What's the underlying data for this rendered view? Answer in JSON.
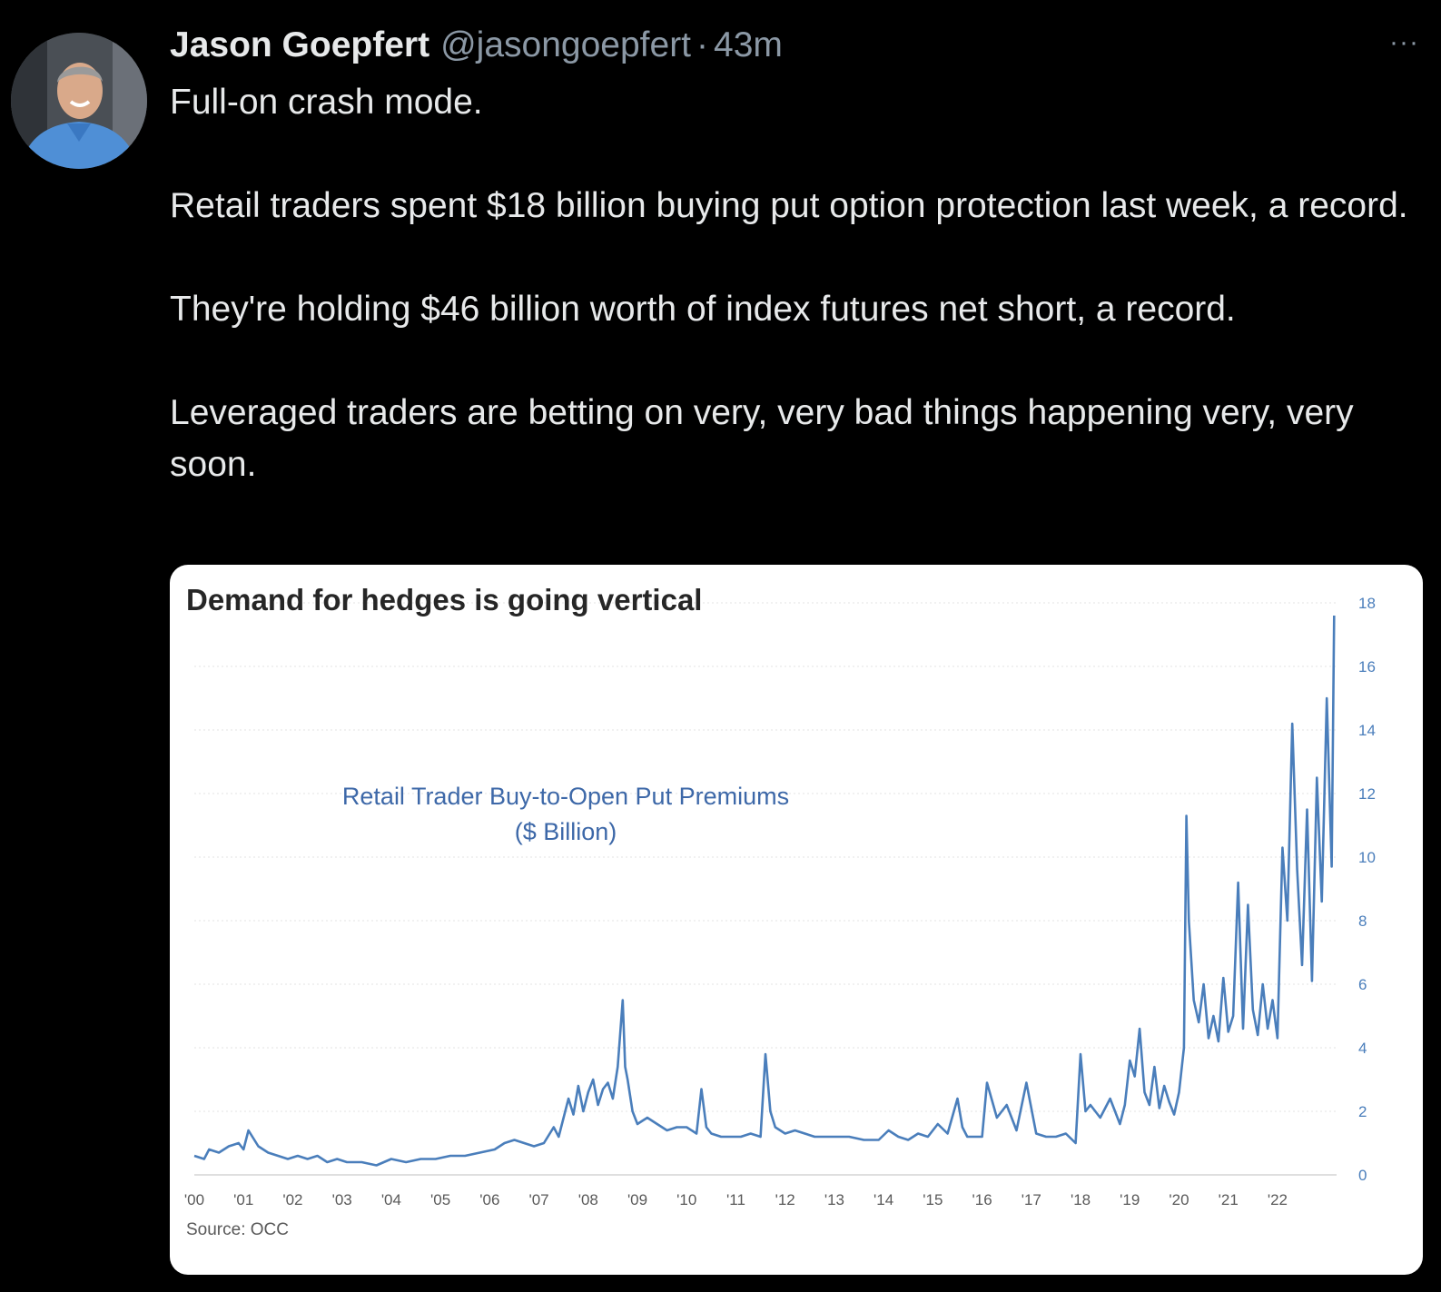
{
  "tweet": {
    "author_name": "Jason Goepfert",
    "handle": "@jasongoepfert",
    "separator": "·",
    "time": "43m",
    "more_label": "···",
    "paragraphs": [
      "Full-on crash mode.",
      "Retail traders spent $18 billion buying put option protection last week, a record.",
      "They're holding $46 billion worth of index futures net short, a record.",
      "Leveraged traders are betting on very, very bad things happening very, very soon."
    ]
  },
  "colors": {
    "background": "#000000",
    "text": "#e7e9ea",
    "muted": "#8b98a5",
    "series": "#4a7ebb"
  },
  "icons": {
    "avatar": "avatar-photo",
    "more": "more-dots-icon"
  },
  "chart_data": {
    "type": "line",
    "title": "Demand for hedges is going vertical",
    "series_label_line1": "Retail Trader Buy-to-Open Put Premiums",
    "series_label_line2": "($ Billion)",
    "source": "Source: OCC",
    "xlim": [
      2000,
      2023.2
    ],
    "ylim": [
      0,
      18
    ],
    "y_axis_side": "right",
    "grid": "horizontal-dotted",
    "x_tick_values": [
      2000,
      2001,
      2002,
      2003,
      2004,
      2005,
      2006,
      2007,
      2008,
      2009,
      2010,
      2011,
      2012,
      2013,
      2014,
      2015,
      2016,
      2017,
      2018,
      2019,
      2020,
      2021,
      2022
    ],
    "x_tick_labels": [
      "'00",
      "'01",
      "'02",
      "'03",
      "'04",
      "'05",
      "'06",
      "'07",
      "'08",
      "'09",
      "'10",
      "'11",
      "'12",
      "'13",
      "'14",
      "'15",
      "'16",
      "'17",
      "'18",
      "'19",
      "'20",
      "'21",
      "'22"
    ],
    "y_ticks": [
      0,
      2,
      4,
      6,
      8,
      10,
      12,
      14,
      16,
      18
    ],
    "series": [
      {
        "x": [
          2000.0,
          2000.2,
          2000.3,
          2000.5,
          2000.7,
          2000.9,
          2001.0,
          2001.1,
          2001.3,
          2001.5,
          2001.7,
          2001.9,
          2002.1,
          2002.3,
          2002.5,
          2002.7,
          2002.9,
          2003.1,
          2003.4,
          2003.7,
          2004.0,
          2004.3,
          2004.6,
          2004.9,
          2005.2,
          2005.5,
          2005.8,
          2006.1,
          2006.3,
          2006.5,
          2006.7,
          2006.9,
          2007.1,
          2007.3,
          2007.4,
          2007.5,
          2007.6,
          2007.7,
          2007.8,
          2007.9,
          2008.0,
          2008.1,
          2008.2,
          2008.3,
          2008.4,
          2008.5,
          2008.6,
          2008.7,
          2008.75,
          2008.8,
          2008.9,
          2009.0,
          2009.1,
          2009.2,
          2009.4,
          2009.6,
          2009.8,
          2010.0,
          2010.2,
          2010.3,
          2010.4,
          2010.5,
          2010.7,
          2010.9,
          2011.1,
          2011.3,
          2011.5,
          2011.6,
          2011.7,
          2011.8,
          2012.0,
          2012.2,
          2012.4,
          2012.6,
          2012.8,
          2013.0,
          2013.3,
          2013.6,
          2013.9,
          2014.1,
          2014.3,
          2014.5,
          2014.7,
          2014.9,
          2015.1,
          2015.3,
          2015.5,
          2015.6,
          2015.7,
          2015.9,
          2016.0,
          2016.1,
          2016.3,
          2016.5,
          2016.7,
          2016.9,
          2017.1,
          2017.3,
          2017.5,
          2017.7,
          2017.9,
          2018.0,
          2018.1,
          2018.2,
          2018.4,
          2018.6,
          2018.8,
          2018.9,
          2019.0,
          2019.1,
          2019.2,
          2019.3,
          2019.4,
          2019.5,
          2019.6,
          2019.7,
          2019.8,
          2019.9,
          2020.0,
          2020.1,
          2020.15,
          2020.2,
          2020.3,
          2020.4,
          2020.5,
          2020.6,
          2020.7,
          2020.8,
          2020.9,
          2021.0,
          2021.1,
          2021.2,
          2021.3,
          2021.4,
          2021.5,
          2021.6,
          2021.7,
          2021.8,
          2021.9,
          2022.0,
          2022.1,
          2022.2,
          2022.3,
          2022.4,
          2022.5,
          2022.6,
          2022.7,
          2022.8,
          2022.9,
          2023.0,
          2023.1,
          2023.15
        ],
        "values": [
          0.6,
          0.5,
          0.8,
          0.7,
          0.9,
          1.0,
          0.8,
          1.4,
          0.9,
          0.7,
          0.6,
          0.5,
          0.6,
          0.5,
          0.6,
          0.4,
          0.5,
          0.4,
          0.4,
          0.3,
          0.5,
          0.4,
          0.5,
          0.5,
          0.6,
          0.6,
          0.7,
          0.8,
          1.0,
          1.1,
          1.0,
          0.9,
          1.0,
          1.5,
          1.2,
          1.8,
          2.4,
          1.9,
          2.8,
          2.0,
          2.6,
          3.0,
          2.2,
          2.7,
          2.9,
          2.4,
          3.4,
          5.5,
          3.4,
          3.0,
          2.0,
          1.6,
          1.7,
          1.8,
          1.6,
          1.4,
          1.5,
          1.5,
          1.3,
          2.7,
          1.5,
          1.3,
          1.2,
          1.2,
          1.2,
          1.3,
          1.2,
          3.8,
          2.0,
          1.5,
          1.3,
          1.4,
          1.3,
          1.2,
          1.2,
          1.2,
          1.2,
          1.1,
          1.1,
          1.4,
          1.2,
          1.1,
          1.3,
          1.2,
          1.6,
          1.3,
          2.4,
          1.5,
          1.2,
          1.2,
          1.2,
          2.9,
          1.8,
          2.2,
          1.4,
          2.9,
          1.3,
          1.2,
          1.2,
          1.3,
          1.0,
          3.8,
          2.0,
          2.2,
          1.8,
          2.4,
          1.6,
          2.2,
          3.6,
          3.1,
          4.6,
          2.6,
          2.2,
          3.4,
          2.1,
          2.8,
          2.3,
          1.9,
          2.6,
          4.0,
          11.3,
          8.0,
          5.5,
          4.8,
          6.0,
          4.3,
          5.0,
          4.2,
          6.2,
          4.5,
          5.0,
          9.2,
          4.6,
          8.5,
          5.2,
          4.4,
          6.0,
          4.6,
          5.5,
          4.3,
          10.3,
          8.0,
          14.2,
          9.6,
          6.6,
          11.5,
          6.1,
          12.5,
          8.6,
          15.0,
          9.7,
          17.6
        ]
      }
    ]
  }
}
